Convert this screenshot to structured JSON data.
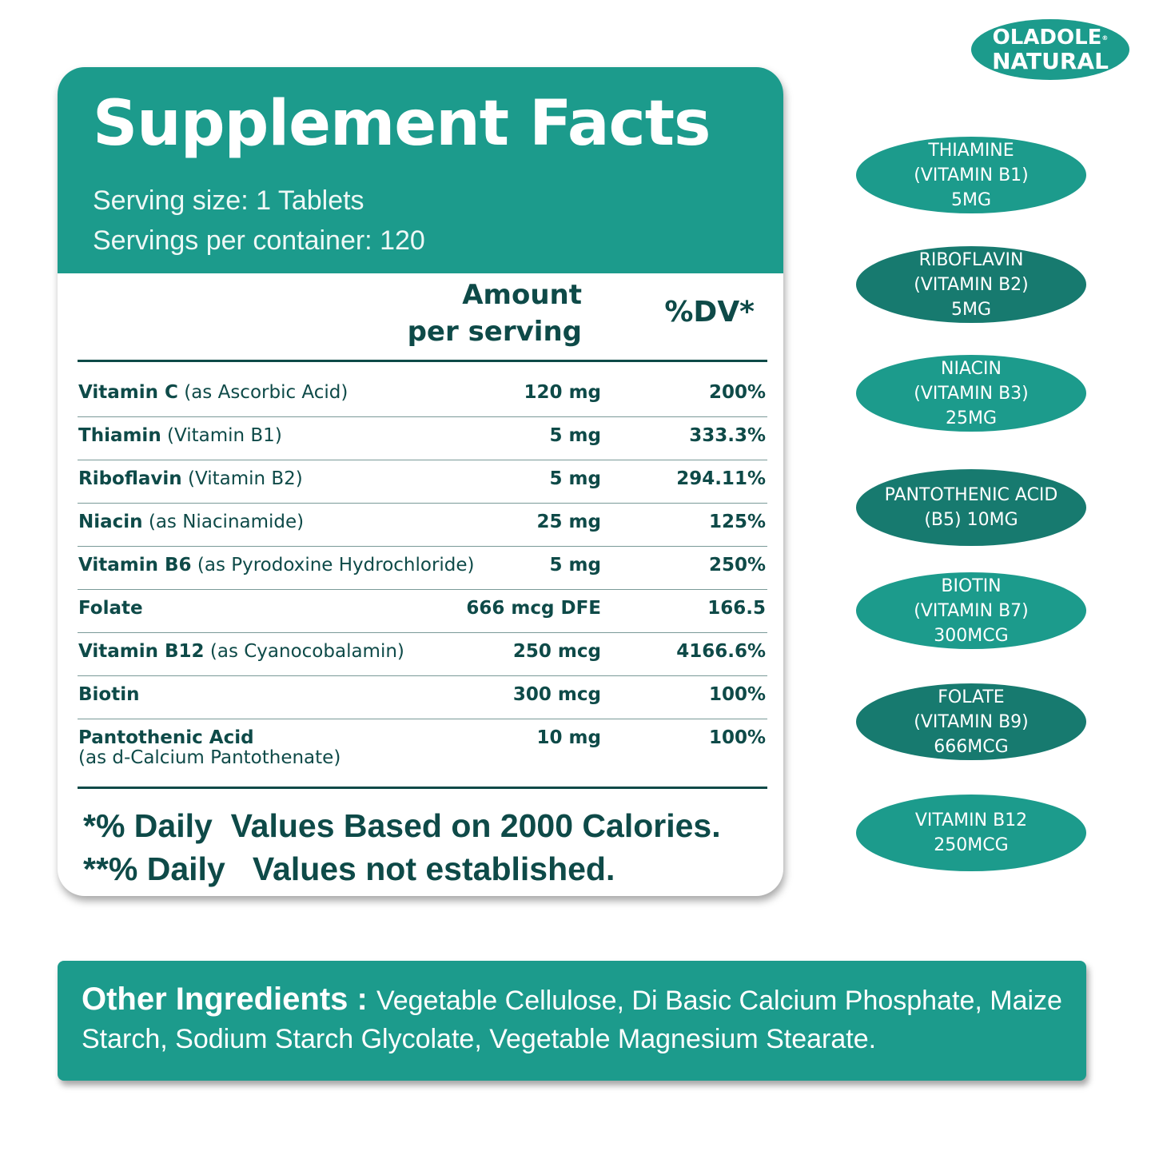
{
  "brand": {
    "line1": "OLADOLE",
    "mark": "®",
    "line2": "NATURAL"
  },
  "panel": {
    "title": "Supplement Facts",
    "serving_size": "Serving size: 1 Tablets",
    "servings_per_container": "Servings per container: 120",
    "col_amount_line1": "Amount",
    "col_amount_line2": "per serving",
    "col_dv": "%DV*",
    "rows": [
      {
        "name": "Vitamin C",
        "detail": " (as Ascorbic Acid)",
        "amount": "120 mg",
        "dv": "200%"
      },
      {
        "name": "Thiamin",
        "detail": " (Vitamin B1)",
        "amount": "5 mg",
        "dv": "333.3%"
      },
      {
        "name": "Riboflavin",
        "detail": " (Vitamin B2)",
        "amount": "5 mg",
        "dv": "294.11%"
      },
      {
        "name": "Niacin",
        "detail": " (as Niacinamide)",
        "amount": "25 mg",
        "dv": "125%"
      },
      {
        "name": "Vitamin B6",
        "detail": " (as Pyrodoxine Hydrochloride)",
        "amount": "5 mg",
        "dv": "250%"
      },
      {
        "name": "Folate",
        "detail": "",
        "amount": "666 mcg DFE",
        "dv": "166.5"
      },
      {
        "name": "Vitamin B12",
        "detail": " (as Cyanocobalamin)",
        "amount": "250 mcg",
        "dv": "4166.6%"
      },
      {
        "name": "Biotin",
        "detail": "",
        "amount": "300 mcg",
        "dv": "100%"
      },
      {
        "name": "Pantothenic Acid",
        "detail": "(as d-Calcium Pantothenate)",
        "amount": "10 mg",
        "dv": "100%"
      }
    ],
    "footnote1": "*% Daily  Values Based on 2000 Calories.",
    "footnote2": "**% Daily   Values not established."
  },
  "badges": [
    {
      "text": "THIAMINE\n(VITAMIN B1)\n5MG"
    },
    {
      "text": "RIBOFLAVIN\n(VITAMIN B2)\n5MG"
    },
    {
      "text": "NIACIN\n(VITAMIN B3)\n25MG"
    },
    {
      "text": "PANTOTHENIC ACID\n(B5)  10MG"
    },
    {
      "text": "BIOTIN\n(VITAMIN B7)\n300MCG"
    },
    {
      "text": "FOLATE\n(VITAMIN B9)\n666MCG"
    },
    {
      "text": "VITAMIN B12\n250MCG"
    }
  ],
  "other_ingredients": {
    "label": "Other Ingredients : ",
    "text": "Vegetable Cellulose, Di Basic Calcium Phosphate, Maize Starch, Sodium Starch Glycolate, Vegetable Magnesium Stearate."
  },
  "colors": {
    "teal": "#1c9b8c",
    "dark_teal": "#177a6f",
    "text": "#0e4a48"
  }
}
